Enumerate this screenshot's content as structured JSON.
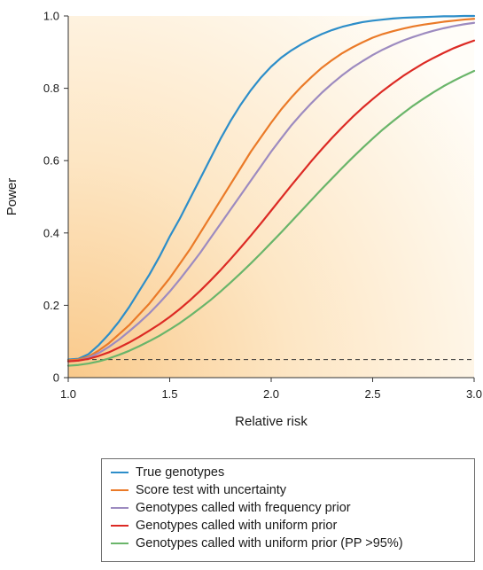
{
  "chart_data": {
    "type": "line",
    "xlabel": "Relative risk",
    "ylabel": "Power",
    "xlim": [
      1.0,
      3.0
    ],
    "ylim": [
      0,
      1.0
    ],
    "x_ticks": [
      "1.0",
      "1.5",
      "2.0",
      "2.5",
      "3.0"
    ],
    "y_ticks": [
      "0",
      "0.2",
      "0.4",
      "0.6",
      "0.8",
      "1.0"
    ],
    "x_tick_values": [
      1.0,
      1.5,
      2.0,
      2.5,
      3.0
    ],
    "y_tick_values": [
      0,
      0.2,
      0.4,
      0.6,
      0.8,
      1.0
    ],
    "reference_line": {
      "y": 0.05,
      "style": "dashed"
    },
    "background": "gradient-orange-to-white",
    "x": [
      1.0,
      1.05,
      1.1,
      1.15,
      1.2,
      1.25,
      1.3,
      1.35,
      1.4,
      1.45,
      1.5,
      1.55,
      1.6,
      1.65,
      1.7,
      1.75,
      1.8,
      1.85,
      1.9,
      1.95,
      2.0,
      2.05,
      2.1,
      2.15,
      2.2,
      2.25,
      2.3,
      2.35,
      2.4,
      2.45,
      2.5,
      2.55,
      2.6,
      2.65,
      2.7,
      2.75,
      2.8,
      2.85,
      2.9,
      2.95,
      3.0
    ],
    "series": [
      {
        "name": "True genotypes",
        "color": "#2d8ec9",
        "values": [
          0.05,
          0.052,
          0.065,
          0.09,
          0.12,
          0.155,
          0.195,
          0.24,
          0.285,
          0.335,
          0.39,
          0.44,
          0.495,
          0.55,
          0.605,
          0.66,
          0.71,
          0.755,
          0.795,
          0.83,
          0.86,
          0.885,
          0.905,
          0.922,
          0.937,
          0.95,
          0.961,
          0.97,
          0.977,
          0.983,
          0.987,
          0.99,
          0.993,
          0.995,
          0.996,
          0.997,
          0.998,
          0.999,
          0.999,
          1.0,
          1.0
        ]
      },
      {
        "name": "Score test with uncertainty",
        "color": "#ea7a28",
        "values": [
          0.048,
          0.05,
          0.058,
          0.075,
          0.095,
          0.12,
          0.145,
          0.175,
          0.205,
          0.24,
          0.275,
          0.315,
          0.355,
          0.4,
          0.445,
          0.49,
          0.535,
          0.58,
          0.625,
          0.665,
          0.705,
          0.742,
          0.775,
          0.805,
          0.832,
          0.857,
          0.878,
          0.897,
          0.913,
          0.927,
          0.94,
          0.95,
          0.958,
          0.965,
          0.971,
          0.976,
          0.98,
          0.984,
          0.987,
          0.99,
          0.992
        ]
      },
      {
        "name": "Genotypes called with frequency prior",
        "color": "#9d8bc0",
        "values": [
          0.045,
          0.047,
          0.055,
          0.068,
          0.085,
          0.105,
          0.128,
          0.152,
          0.178,
          0.207,
          0.238,
          0.272,
          0.308,
          0.345,
          0.385,
          0.425,
          0.465,
          0.505,
          0.545,
          0.585,
          0.625,
          0.662,
          0.698,
          0.73,
          0.76,
          0.788,
          0.813,
          0.836,
          0.857,
          0.875,
          0.892,
          0.907,
          0.92,
          0.932,
          0.942,
          0.951,
          0.959,
          0.966,
          0.972,
          0.977,
          0.981
        ]
      },
      {
        "name": "Genotypes called with uniform prior",
        "color": "#dc2a24",
        "values": [
          0.045,
          0.047,
          0.052,
          0.06,
          0.07,
          0.083,
          0.097,
          0.113,
          0.13,
          0.148,
          0.168,
          0.19,
          0.214,
          0.24,
          0.268,
          0.297,
          0.328,
          0.36,
          0.393,
          0.427,
          0.462,
          0.497,
          0.532,
          0.566,
          0.6,
          0.632,
          0.663,
          0.692,
          0.72,
          0.746,
          0.77,
          0.793,
          0.814,
          0.834,
          0.852,
          0.869,
          0.884,
          0.898,
          0.911,
          0.922,
          0.932
        ]
      },
      {
        "name": "Genotypes called with uniform prior (PP >95%)",
        "color": "#6ab56a",
        "values": [
          0.033,
          0.035,
          0.039,
          0.045,
          0.053,
          0.063,
          0.074,
          0.087,
          0.101,
          0.116,
          0.133,
          0.151,
          0.171,
          0.192,
          0.214,
          0.238,
          0.263,
          0.289,
          0.316,
          0.344,
          0.373,
          0.402,
          0.432,
          0.462,
          0.492,
          0.522,
          0.551,
          0.58,
          0.608,
          0.635,
          0.661,
          0.686,
          0.709,
          0.731,
          0.752,
          0.771,
          0.789,
          0.806,
          0.821,
          0.835,
          0.848
        ]
      }
    ]
  }
}
